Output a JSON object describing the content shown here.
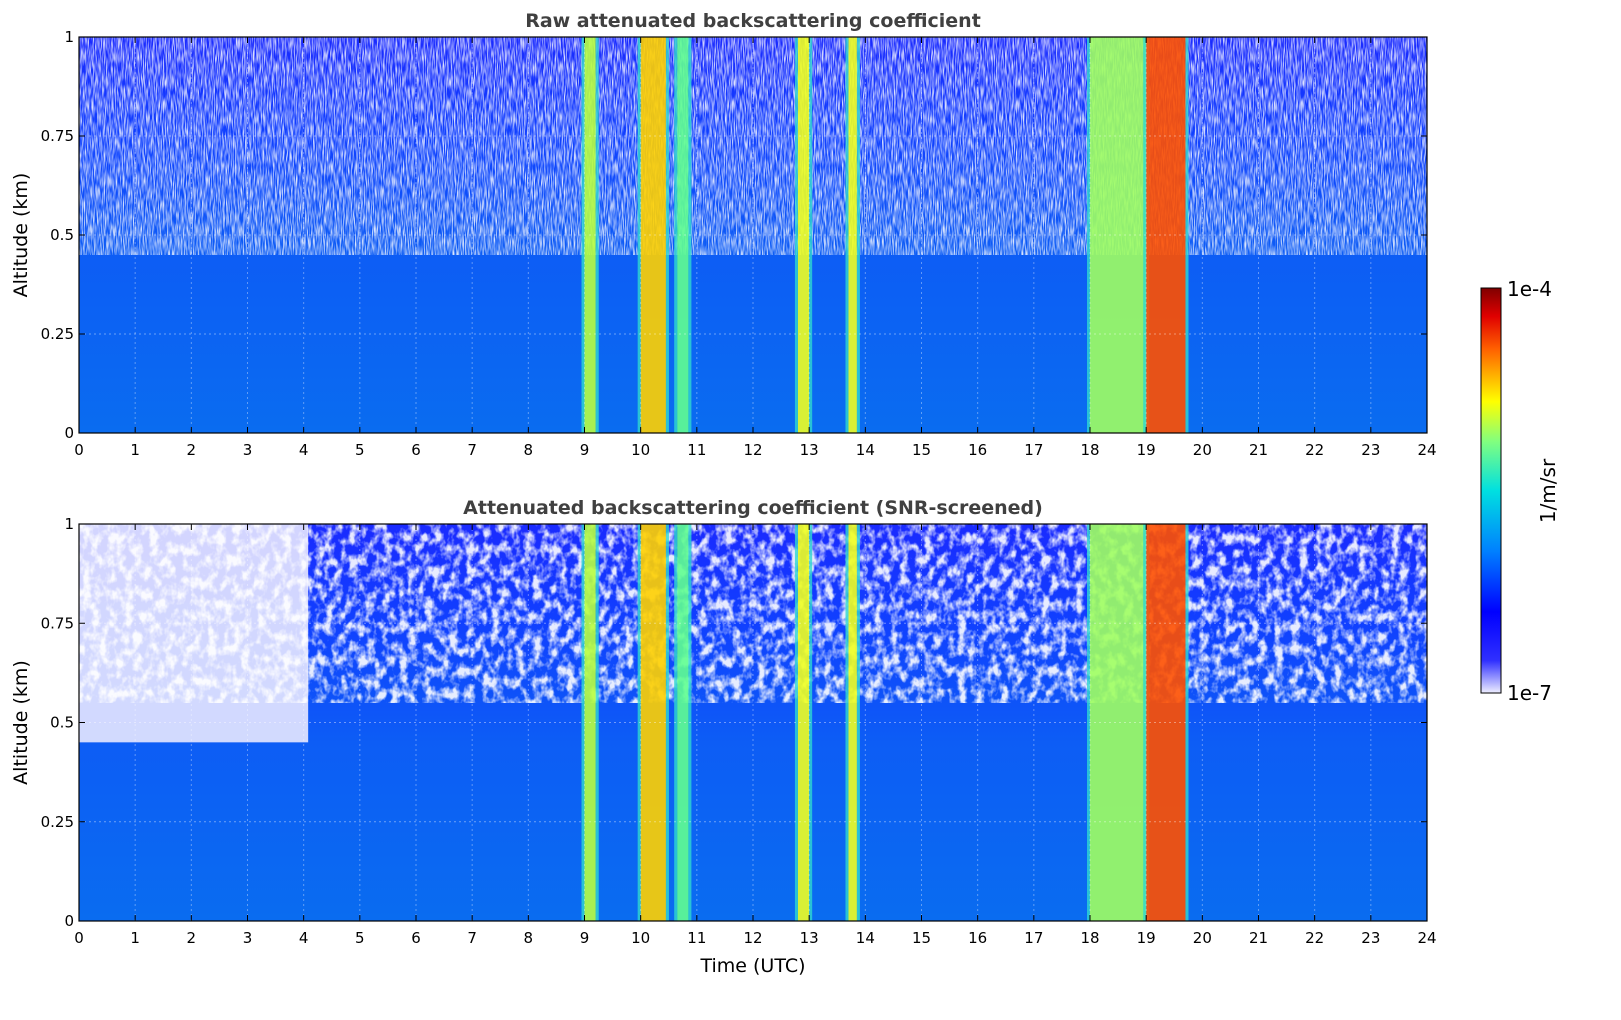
{
  "chart_data": [
    {
      "type": "heatmap",
      "title": "Raw attenuated backscattering coefficient",
      "xlabel": "",
      "ylabel": "Altitude (km)",
      "xlim": [
        0,
        24
      ],
      "ylim": [
        0,
        1
      ],
      "xticks": [
        "0",
        "1",
        "2",
        "3",
        "4",
        "5",
        "6",
        "7",
        "8",
        "9",
        "10",
        "11",
        "12",
        "13",
        "14",
        "15",
        "16",
        "17",
        "18",
        "19",
        "20",
        "21",
        "22",
        "23",
        "24"
      ],
      "yticks": [
        "0",
        "0.25",
        "0.5",
        "0.75",
        "1"
      ],
      "grid": true,
      "screened": false,
      "bands": [
        {
          "x_start": 9.0,
          "x_end": 9.2,
          "level": "yellow-green"
        },
        {
          "x_start": 10.0,
          "x_end": 10.45,
          "level": "yellow-orange"
        },
        {
          "x_start": 10.65,
          "x_end": 10.85,
          "level": "green"
        },
        {
          "x_start": 12.8,
          "x_end": 13.0,
          "level": "yellow"
        },
        {
          "x_start": 13.7,
          "x_end": 13.85,
          "level": "yellow"
        },
        {
          "x_start": 18.0,
          "x_end": 19.0,
          "level": "green-yellow"
        },
        {
          "x_start": 19.0,
          "x_end": 19.7,
          "level": "orange-red"
        }
      ]
    },
    {
      "type": "heatmap",
      "title": "Attenuated backscattering coefficient (SNR-screened)",
      "xlabel": "Time (UTC)",
      "ylabel": "Altitude (km)",
      "xlim": [
        0,
        24
      ],
      "ylim": [
        0,
        1
      ],
      "xticks": [
        "0",
        "1",
        "2",
        "3",
        "4",
        "5",
        "6",
        "7",
        "8",
        "9",
        "10",
        "11",
        "12",
        "13",
        "14",
        "15",
        "16",
        "17",
        "18",
        "19",
        "20",
        "21",
        "22",
        "23",
        "24"
      ],
      "yticks": [
        "0",
        "0.25",
        "0.5",
        "0.75",
        "1"
      ],
      "grid": true,
      "screened": true,
      "bands": [
        {
          "x_start": 9.0,
          "x_end": 9.2,
          "level": "yellow-green"
        },
        {
          "x_start": 10.0,
          "x_end": 10.45,
          "level": "yellow-orange"
        },
        {
          "x_start": 10.65,
          "x_end": 10.85,
          "level": "green"
        },
        {
          "x_start": 12.8,
          "x_end": 13.0,
          "level": "yellow"
        },
        {
          "x_start": 13.7,
          "x_end": 13.85,
          "level": "yellow"
        },
        {
          "x_start": 18.0,
          "x_end": 19.0,
          "level": "green-yellow"
        },
        {
          "x_start": 19.0,
          "x_end": 19.7,
          "level": "orange-red"
        }
      ]
    }
  ],
  "colorbar": {
    "label": "1/m/sr",
    "max_label": "1e-4",
    "min_label": "1e-7",
    "colormap": "jet"
  }
}
